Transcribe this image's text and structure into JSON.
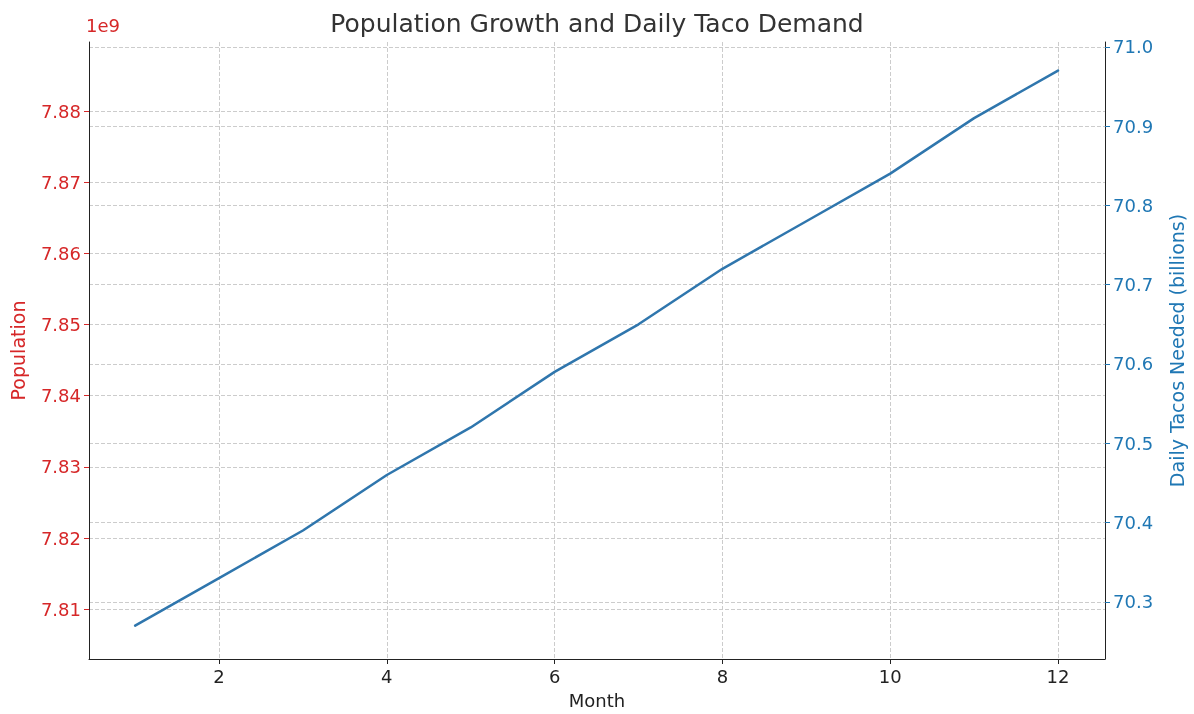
{
  "chart_data": {
    "type": "line",
    "title": "Population Growth and Daily Taco Demand",
    "xlabel": "Month",
    "ylabel": "Population",
    "y2label": "Daily Tacos Needed (billions)",
    "annotations": [
      "1e9"
    ],
    "x": [
      1,
      2,
      3,
      4,
      5,
      6,
      7,
      8,
      9,
      10,
      11,
      12
    ],
    "series": [
      {
        "color": "#2f76ad",
        "axis": "y2",
        "values": [
          70.27,
          70.33,
          70.39,
          70.46,
          70.52,
          70.59,
          70.65,
          70.72,
          70.78,
          70.84,
          70.91,
          70.97
        ]
      }
    ],
    "xlim": [
      0.45,
      12.56
    ],
    "xticks": [
      2,
      4,
      6,
      8,
      10,
      12
    ],
    "ylim": [
      7.803,
      7.8897
    ],
    "yticks": [
      7.81,
      7.82,
      7.83,
      7.84,
      7.85,
      7.86,
      7.87,
      7.88
    ],
    "y2lim": [
      70.228,
      71.006
    ],
    "y2ticks": [
      70.3,
      70.4,
      70.5,
      70.6,
      70.7,
      70.8,
      70.9,
      {
        "value": 71,
        "label": "71.0"
      }
    ],
    "grid": true,
    "line_style": "solid",
    "marker": "none"
  }
}
